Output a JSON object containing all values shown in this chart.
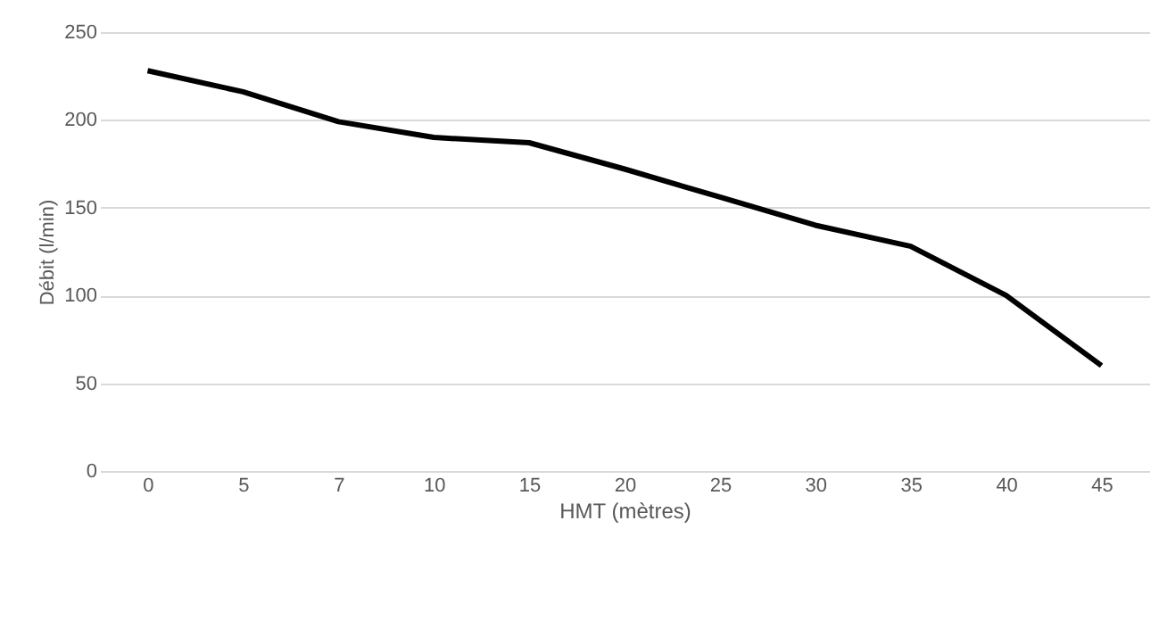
{
  "chart_data": {
    "type": "line",
    "xlabel": "HMT (mètres)",
    "ylabel": "Débit (l/min)",
    "categories": [
      "0",
      "5",
      "7",
      "10",
      "15",
      "20",
      "25",
      "30",
      "35",
      "40",
      "45"
    ],
    "series": [
      {
        "color": "#000000",
        "values": [
          228,
          216,
          199,
          190,
          187,
          172,
          156,
          140,
          128,
          100,
          60
        ]
      }
    ],
    "ylim": [
      0,
      250
    ],
    "yticks": [
      0,
      50,
      100,
      150,
      200,
      250
    ],
    "grid": "y",
    "legend": false,
    "marker": "none",
    "line_style": "solid"
  }
}
